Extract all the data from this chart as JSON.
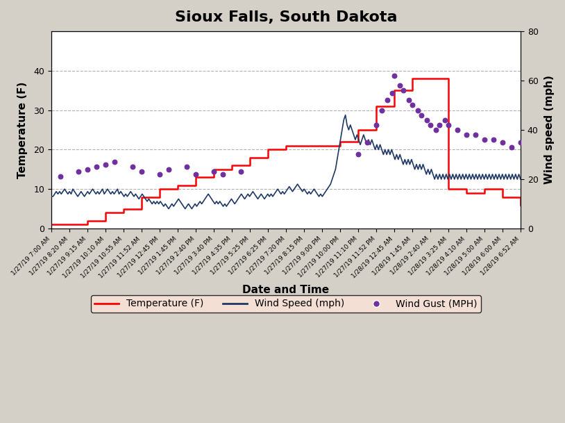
{
  "title": "Sioux Falls, South Dakota",
  "xlabel": "Date and Time",
  "ylabel_left": "Temperature (F)",
  "ylabel_right": "Wind speed (mph)",
  "background_color": "#d4d0c8",
  "plot_background": "#ffffff",
  "title_fontsize": 16,
  "label_fontsize": 11,
  "x_labels": [
    "1/27/19 7:00 AM",
    "1/27/19 8:20 AM",
    "1/27/19 9:15 AM",
    "1/27/19 10:10 AM",
    "1/27/19 10:55 AM",
    "1/27/19 11:52 AM",
    "1/27/19 12:45 PM",
    "1/27/19 1:45 PM",
    "1/27/19 2:40 PM",
    "1/27/19 3:40 PM",
    "1/27/19 4:35 PM",
    "1/27/19 5:25 PM",
    "1/27/19 6:25 PM",
    "1/27/19 7:20 PM",
    "1/27/19 8:15 PM",
    "1/27/19 9:00 PM",
    "1/27/19 10:00 PM",
    "1/27/19 11:10 PM",
    "1/27/19 11:52 PM",
    "1/28/19 12:45 AM",
    "1/28/19 1:45 AM",
    "1/28/19 2:40 AM",
    "1/28/19 3:25 AM",
    "1/28/19 4:10 AM",
    "1/28/19 5:00 AM",
    "1/28/19 6:00 AM",
    "1/28/19 6:52 AM"
  ],
  "temp_values": [
    1,
    1,
    2,
    4,
    5,
    8,
    10,
    11,
    13,
    15,
    16,
    18,
    20,
    21,
    21,
    21,
    22,
    25,
    31,
    35,
    38,
    38,
    10,
    9,
    10,
    8,
    6
  ],
  "wind_speed_values": [
    13,
    13,
    14,
    15,
    14,
    15,
    14,
    15,
    16,
    15,
    14,
    15,
    14,
    16,
    15,
    14,
    13,
    14,
    15,
    14,
    13,
    14,
    15,
    14,
    15,
    16,
    15,
    14,
    15,
    14,
    15,
    16,
    14,
    15,
    16,
    15,
    14,
    15,
    14,
    15,
    16,
    14,
    15,
    14,
    13,
    14,
    13,
    14,
    15,
    14,
    13,
    14,
    13,
    12,
    13,
    14,
    13,
    12,
    11,
    12,
    11,
    10,
    11,
    10,
    11,
    10,
    11,
    10,
    9,
    10,
    9,
    8,
    9,
    10,
    9,
    10,
    11,
    12,
    11,
    10,
    9,
    8,
    9,
    10,
    9,
    8,
    9,
    10,
    9,
    10,
    11,
    10,
    11,
    12,
    13,
    14,
    13,
    12,
    11,
    10,
    11,
    10,
    11,
    10,
    9,
    10,
    9,
    10,
    11,
    12,
    11,
    10,
    11,
    12,
    13,
    14,
    13,
    12,
    13,
    14,
    13,
    14,
    15,
    14,
    13,
    12,
    13,
    14,
    13,
    12,
    13,
    14,
    13,
    14,
    13,
    14,
    15,
    16,
    15,
    14,
    15,
    14,
    15,
    16,
    17,
    16,
    15,
    16,
    17,
    18,
    17,
    16,
    15,
    16,
    15,
    14,
    15,
    14,
    15,
    16,
    15,
    14,
    13,
    14,
    13,
    14,
    15,
    16,
    17,
    18,
    20,
    22,
    24,
    28,
    32,
    36,
    40,
    44,
    46,
    42,
    40,
    42,
    40,
    38,
    36,
    38,
    36,
    34,
    36,
    38,
    36,
    34,
    36,
    34,
    36,
    34,
    32,
    34,
    32,
    34,
    32,
    30,
    32,
    30,
    32,
    30,
    32,
    30,
    28,
    30,
    28,
    30,
    28,
    26,
    28,
    26,
    28,
    26,
    28,
    26,
    24,
    26,
    24,
    26,
    24,
    26,
    24,
    22,
    24,
    22,
    24,
    22,
    20,
    22,
    20,
    22,
    20,
    22,
    20,
    22,
    20,
    22,
    20,
    22,
    20,
    22,
    20,
    22,
    20,
    22,
    20,
    22,
    20,
    22,
    20,
    22,
    20,
    22,
    20,
    22,
    20,
    22,
    20,
    22,
    20,
    22,
    20,
    22,
    20,
    22,
    20,
    22,
    20,
    22,
    20,
    22,
    20,
    22,
    20,
    22,
    20,
    22,
    20,
    22,
    20
  ],
  "wind_gust_x": [
    0.5,
    1.5,
    2.0,
    2.5,
    3.0,
    3.5,
    4.5,
    5.0,
    6.0,
    6.5,
    7.5,
    8.0,
    9.0,
    9.5,
    10.5,
    17.0,
    17.5,
    18.0,
    18.3,
    18.6,
    18.9,
    19.0,
    19.3,
    19.5,
    19.8,
    20.0,
    20.3,
    20.5,
    20.8,
    21.0,
    21.3,
    21.5,
    21.8,
    22.0,
    22.5,
    23.0,
    23.5,
    24.0,
    24.5,
    25.0,
    25.5,
    26.0
  ],
  "wind_gust_y": [
    21,
    23,
    24,
    25,
    26,
    27,
    25,
    23,
    22,
    24,
    25,
    22,
    23,
    22,
    23,
    30,
    35,
    42,
    48,
    52,
    55,
    62,
    58,
    56,
    52,
    50,
    48,
    46,
    44,
    42,
    40,
    42,
    44,
    42,
    40,
    38,
    38,
    36,
    36,
    35,
    33,
    35
  ],
  "temp_color": "#ff0000",
  "wind_speed_color": "#1f3864",
  "wind_gust_color": "#7030a0",
  "legend_bg": "#fce4d6",
  "temp_ylim": [
    0,
    50
  ],
  "wind_ylim": [
    0,
    80
  ],
  "temp_yticks": [
    0,
    10,
    20,
    30,
    40
  ],
  "wind_yticks": [
    0,
    20,
    40,
    60,
    80
  ]
}
